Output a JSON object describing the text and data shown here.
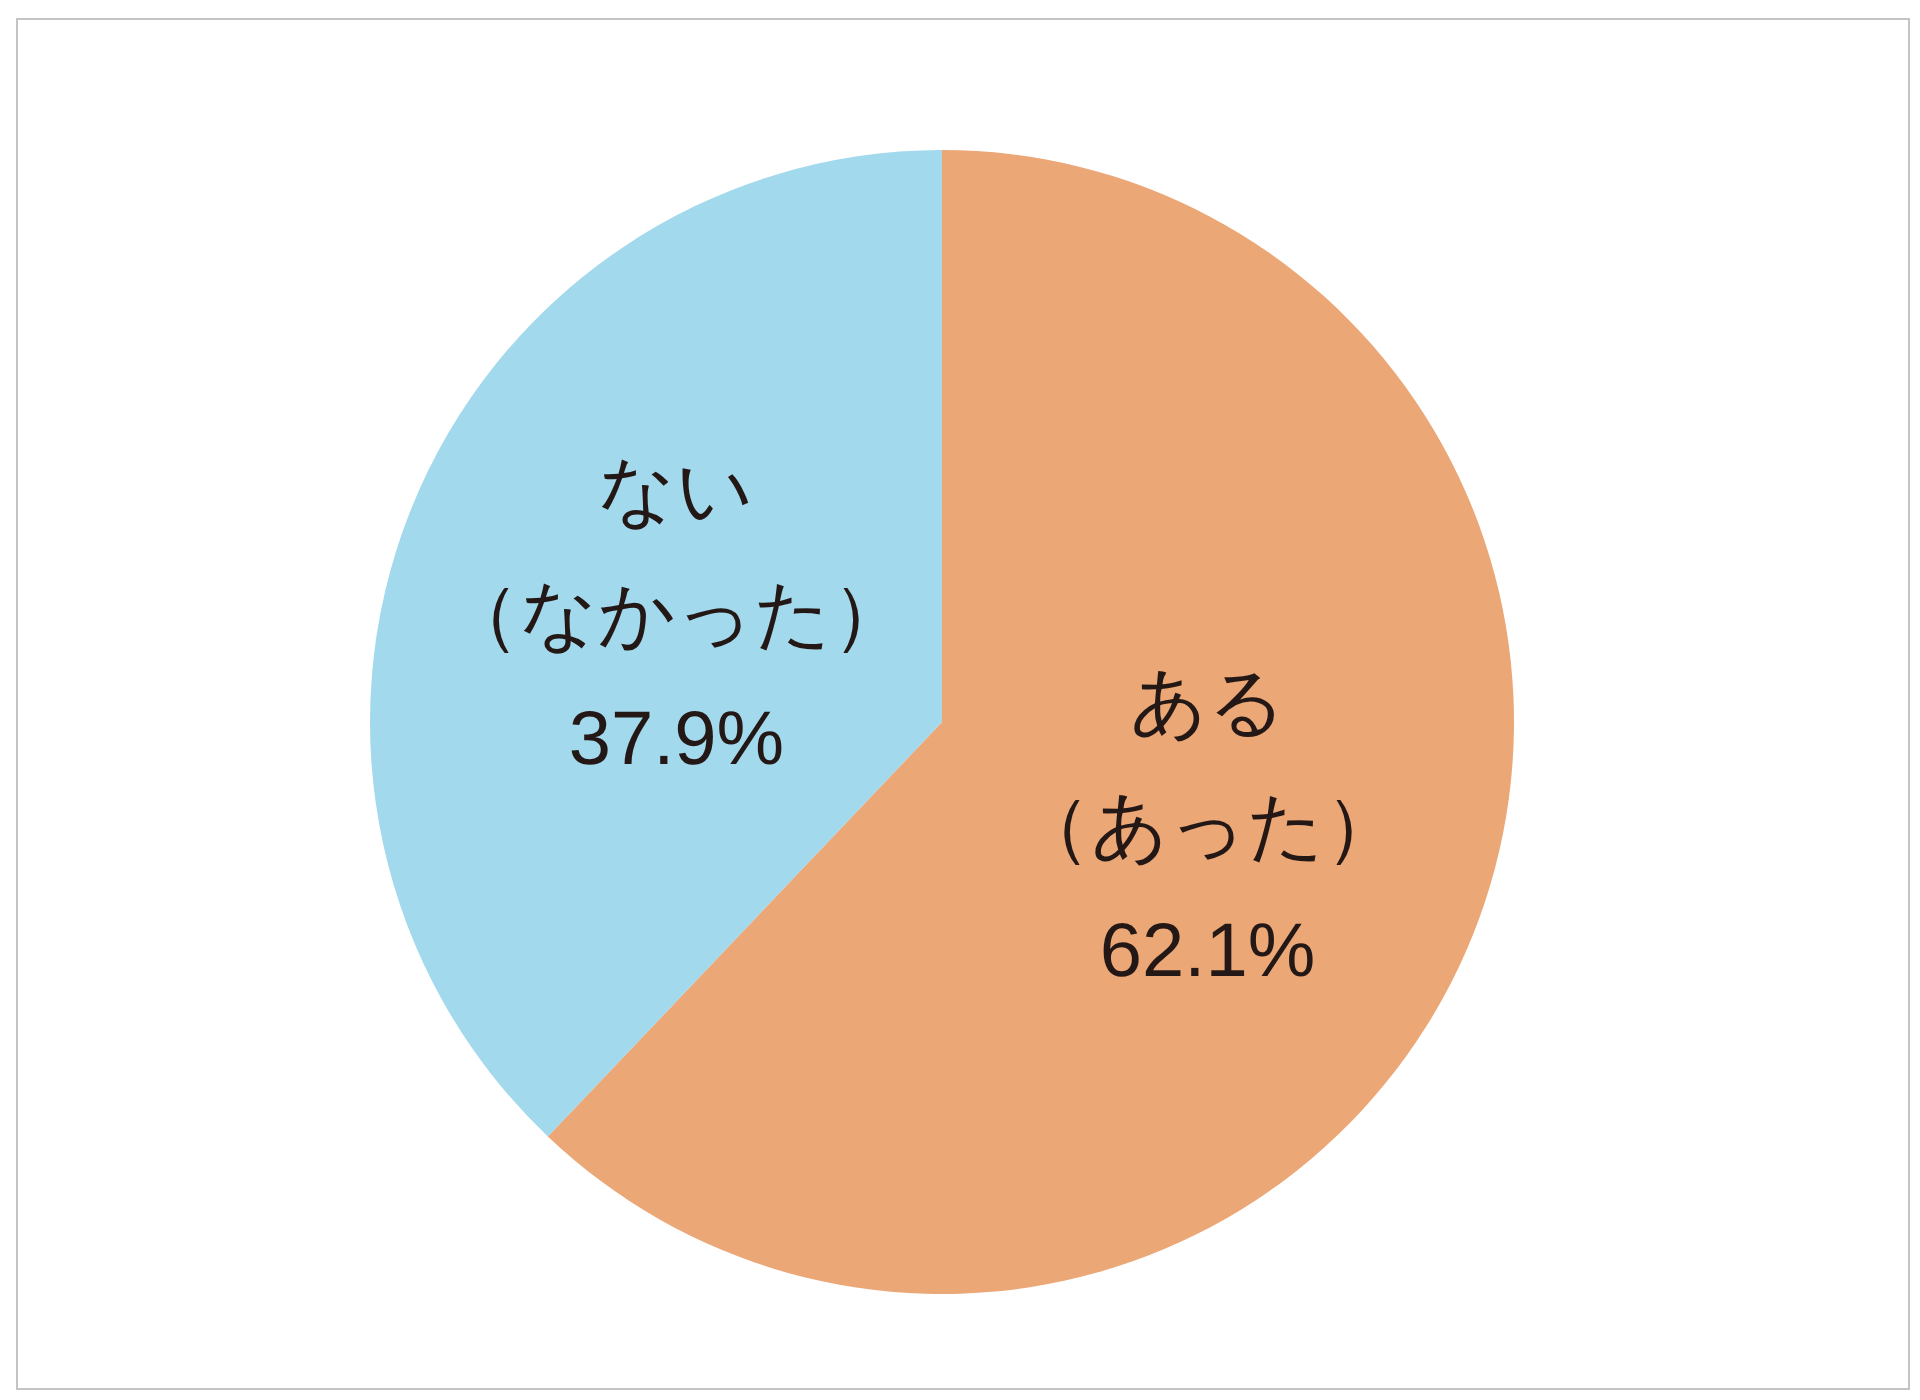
{
  "chart_data": {
    "type": "pie",
    "categories": [
      "ある（あった）",
      "ない（なかった）"
    ],
    "values": [
      62.1,
      37.9
    ],
    "value_labels": [
      "62.1%",
      "37.9%"
    ],
    "colors": [
      "#eca776",
      "#a3d9ed"
    ]
  }
}
